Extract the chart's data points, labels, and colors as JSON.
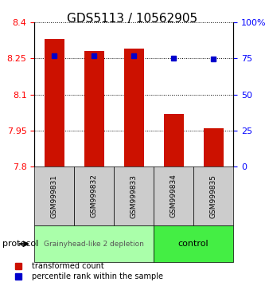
{
  "title": "GDS5113 / 10562905",
  "samples": [
    "GSM999831",
    "GSM999832",
    "GSM999833",
    "GSM999834",
    "GSM999835"
  ],
  "bar_values": [
    8.33,
    8.28,
    8.29,
    8.02,
    7.96
  ],
  "blue_values": [
    8.262,
    8.262,
    8.262,
    8.25,
    8.248
  ],
  "ymin": 7.8,
  "ymax": 8.4,
  "y2min": 0,
  "y2max": 100,
  "yticks": [
    7.8,
    7.95,
    8.1,
    8.25,
    8.4
  ],
  "ytick_labels": [
    "7.8",
    "7.95",
    "8.1",
    "8.25",
    "8.4"
  ],
  "y2ticks": [
    0,
    25,
    50,
    75,
    100
  ],
  "y2tick_labels": [
    "0",
    "25",
    "50",
    "75",
    "100%"
  ],
  "bar_color": "#cc1100",
  "blue_color": "#0000cc",
  "bar_bottom": 7.8,
  "group1_label": "Grainyhead-like 2 depletion",
  "group2_label": "control",
  "group1_color": "#aaffaa",
  "group2_color": "#44ee44",
  "protocol_label": "protocol",
  "legend_red": "transformed count",
  "legend_blue": "percentile rank within the sample",
  "title_fontsize": 11,
  "tick_fontsize": 8
}
